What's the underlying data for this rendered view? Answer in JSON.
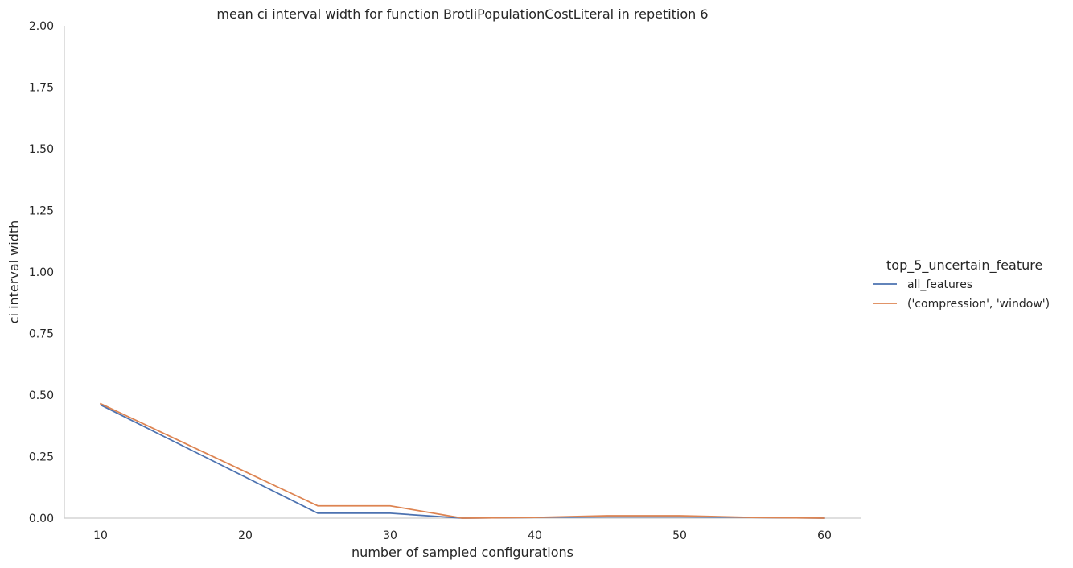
{
  "chart_data": {
    "type": "line",
    "title": "mean ci interval width for function BrotliPopulationCostLiteral in repetition 6",
    "xlabel": "number of sampled configurations",
    "ylabel": "ci interval width",
    "xlim": [
      7.5,
      62.5
    ],
    "ylim": [
      0,
      2.0
    ],
    "xticks": [
      10,
      20,
      30,
      40,
      50,
      60
    ],
    "yticks": [
      0.0,
      0.25,
      0.5,
      0.75,
      1.0,
      1.25,
      1.5,
      1.75,
      2.0
    ],
    "ytick_labels": [
      "0.00",
      "0.25",
      "0.50",
      "0.75",
      "1.00",
      "1.25",
      "1.50",
      "1.75",
      "2.00"
    ],
    "grid": false,
    "legend_title": "top_5_uncertain_feature",
    "legend_position": "right",
    "series": [
      {
        "name": "all_features",
        "color": "#4c72b0",
        "x": [
          10,
          25,
          30,
          35,
          40,
          45,
          50,
          55,
          60
        ],
        "y": [
          0.46,
          0.02,
          0.02,
          0.0,
          0.003,
          0.005,
          0.005,
          0.003,
          0.0
        ]
      },
      {
        "name": "('compression', 'window')",
        "color": "#dd8452",
        "x": [
          10,
          25,
          30,
          35,
          40,
          45,
          50,
          55,
          60
        ],
        "y": [
          0.465,
          0.05,
          0.05,
          0.0,
          0.003,
          0.01,
          0.01,
          0.003,
          0.0
        ]
      }
    ]
  }
}
